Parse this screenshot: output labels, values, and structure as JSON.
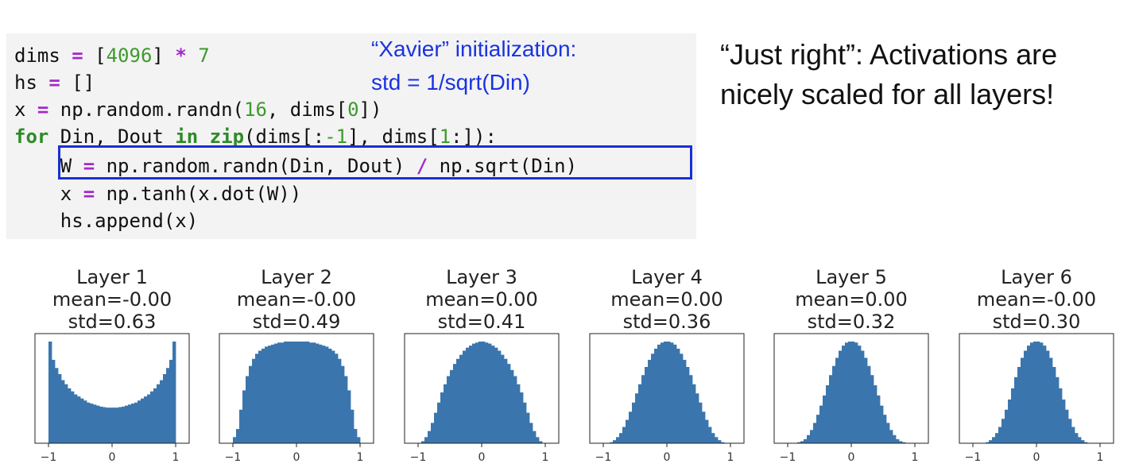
{
  "code": {
    "lines": [
      [
        {
          "t": "dims ",
          "c": ""
        },
        {
          "t": "=",
          "c": "op"
        },
        {
          "t": " [",
          "c": ""
        },
        {
          "t": "4096",
          "c": "num"
        },
        {
          "t": "] ",
          "c": ""
        },
        {
          "t": "*",
          "c": "op"
        },
        {
          "t": " ",
          "c": ""
        },
        {
          "t": "7",
          "c": "num"
        }
      ],
      [
        {
          "t": "hs ",
          "c": ""
        },
        {
          "t": "=",
          "c": "op"
        },
        {
          "t": " []",
          "c": ""
        }
      ],
      [
        {
          "t": "x ",
          "c": ""
        },
        {
          "t": "=",
          "c": "op"
        },
        {
          "t": " np.random.randn(",
          "c": ""
        },
        {
          "t": "16",
          "c": "num"
        },
        {
          "t": ", dims[",
          "c": ""
        },
        {
          "t": "0",
          "c": "num"
        },
        {
          "t": "])",
          "c": ""
        }
      ],
      [
        {
          "t": "for",
          "c": "kw"
        },
        {
          "t": " Din, Dout ",
          "c": ""
        },
        {
          "t": "in",
          "c": "kw"
        },
        {
          "t": " ",
          "c": ""
        },
        {
          "t": "zip",
          "c": "kw"
        },
        {
          "t": "(dims[:",
          "c": ""
        },
        {
          "t": "-1",
          "c": "num"
        },
        {
          "t": "], dims[",
          "c": ""
        },
        {
          "t": "1",
          "c": "num"
        },
        {
          "t": ":]):",
          "c": ""
        }
      ],
      [
        {
          "t": "    W ",
          "c": ""
        },
        {
          "t": "=",
          "c": "op"
        },
        {
          "t": " np.random.randn(Din, Dout) ",
          "c": ""
        },
        {
          "t": "/",
          "c": "op"
        },
        {
          "t": " np.sqrt(Din)",
          "c": ""
        }
      ],
      [
        {
          "t": "    x ",
          "c": ""
        },
        {
          "t": "=",
          "c": "op"
        },
        {
          "t": " np.tanh(x.dot(W))",
          "c": ""
        }
      ],
      [
        {
          "t": "    hs.append(x)",
          "c": ""
        }
      ]
    ]
  },
  "annotation": {
    "line1": "“Xavier” initialization:",
    "line2": "std = 1/sqrt(Din)"
  },
  "side_text": {
    "line1": "“Just right”: Activations are",
    "line2": "nicely scaled for all layers!"
  },
  "colors": {
    "bar": "#3a76ad",
    "highlight_border": "#1a2fd6",
    "annotation_text": "#1a33e0"
  },
  "chart_data": [
    {
      "type": "bar",
      "title": "Layer 1",
      "subtitle1": "mean=-0.00",
      "subtitle2": "std=0.63",
      "xlim": [
        -1,
        1
      ],
      "xticks": [
        "−1",
        "0",
        "1"
      ],
      "x": [
        -0.975,
        -0.925,
        -0.875,
        -0.825,
        -0.775,
        -0.725,
        -0.675,
        -0.625,
        -0.575,
        -0.525,
        -0.475,
        -0.425,
        -0.375,
        -0.325,
        -0.275,
        -0.225,
        -0.175,
        -0.125,
        -0.075,
        -0.025,
        0.025,
        0.075,
        0.125,
        0.175,
        0.225,
        0.275,
        0.325,
        0.375,
        0.425,
        0.475,
        0.525,
        0.575,
        0.625,
        0.675,
        0.725,
        0.775,
        0.825,
        0.875,
        0.925,
        0.975
      ],
      "values": [
        1.0,
        0.82,
        0.74,
        0.68,
        0.62,
        0.58,
        0.54,
        0.51,
        0.48,
        0.46,
        0.44,
        0.42,
        0.4,
        0.39,
        0.38,
        0.37,
        0.36,
        0.355,
        0.35,
        0.35,
        0.35,
        0.35,
        0.355,
        0.36,
        0.37,
        0.38,
        0.39,
        0.4,
        0.42,
        0.44,
        0.46,
        0.48,
        0.51,
        0.54,
        0.58,
        0.62,
        0.68,
        0.74,
        0.82,
        1.0
      ]
    },
    {
      "type": "bar",
      "title": "Layer 2",
      "subtitle1": "mean=-0.00",
      "subtitle2": "std=0.49",
      "xlim": [
        -1,
        1
      ],
      "xticks": [
        "−1",
        "0",
        "1"
      ],
      "x": [
        -0.975,
        -0.925,
        -0.875,
        -0.825,
        -0.775,
        -0.725,
        -0.675,
        -0.625,
        -0.575,
        -0.525,
        -0.475,
        -0.425,
        -0.375,
        -0.325,
        -0.275,
        -0.225,
        -0.175,
        -0.125,
        -0.075,
        -0.025,
        0.025,
        0.075,
        0.125,
        0.175,
        0.225,
        0.275,
        0.325,
        0.375,
        0.425,
        0.475,
        0.525,
        0.575,
        0.625,
        0.675,
        0.725,
        0.775,
        0.825,
        0.875,
        0.925,
        0.975
      ],
      "values": [
        0.06,
        0.14,
        0.33,
        0.52,
        0.66,
        0.76,
        0.83,
        0.88,
        0.91,
        0.93,
        0.95,
        0.96,
        0.97,
        0.98,
        0.99,
        0.99,
        1.0,
        1.0,
        1.0,
        1.0,
        1.0,
        1.0,
        1.0,
        1.0,
        0.99,
        0.99,
        0.98,
        0.97,
        0.96,
        0.95,
        0.93,
        0.91,
        0.88,
        0.83,
        0.76,
        0.66,
        0.52,
        0.33,
        0.14,
        0.06
      ]
    },
    {
      "type": "bar",
      "title": "Layer 3",
      "subtitle1": "mean=0.00",
      "subtitle2": "std=0.41",
      "xlim": [
        -1,
        1
      ],
      "xticks": [
        "−1",
        "0",
        "1"
      ],
      "x": [
        -0.975,
        -0.925,
        -0.875,
        -0.825,
        -0.775,
        -0.725,
        -0.675,
        -0.625,
        -0.575,
        -0.525,
        -0.475,
        -0.425,
        -0.375,
        -0.325,
        -0.275,
        -0.225,
        -0.175,
        -0.125,
        -0.075,
        -0.025,
        0.025,
        0.075,
        0.125,
        0.175,
        0.225,
        0.275,
        0.325,
        0.375,
        0.425,
        0.475,
        0.525,
        0.575,
        0.625,
        0.675,
        0.725,
        0.775,
        0.825,
        0.875,
        0.925,
        0.975
      ],
      "values": [
        0.0,
        0.02,
        0.06,
        0.12,
        0.2,
        0.3,
        0.4,
        0.5,
        0.58,
        0.66,
        0.72,
        0.78,
        0.83,
        0.87,
        0.91,
        0.94,
        0.96,
        0.98,
        0.99,
        1.0,
        1.0,
        0.99,
        0.98,
        0.96,
        0.94,
        0.91,
        0.87,
        0.83,
        0.78,
        0.72,
        0.66,
        0.58,
        0.5,
        0.4,
        0.3,
        0.2,
        0.12,
        0.06,
        0.02,
        0.0
      ]
    },
    {
      "type": "bar",
      "title": "Layer 4",
      "subtitle1": "mean=0.00",
      "subtitle2": "std=0.36",
      "xlim": [
        -1,
        1
      ],
      "xticks": [
        "−1",
        "0",
        "1"
      ],
      "x": [
        -0.975,
        -0.925,
        -0.875,
        -0.825,
        -0.775,
        -0.725,
        -0.675,
        -0.625,
        -0.575,
        -0.525,
        -0.475,
        -0.425,
        -0.375,
        -0.325,
        -0.275,
        -0.225,
        -0.175,
        -0.125,
        -0.075,
        -0.025,
        0.025,
        0.075,
        0.125,
        0.175,
        0.225,
        0.275,
        0.325,
        0.375,
        0.425,
        0.475,
        0.525,
        0.575,
        0.625,
        0.675,
        0.725,
        0.775,
        0.825,
        0.875,
        0.925,
        0.975
      ],
      "values": [
        0.0,
        0.0,
        0.01,
        0.03,
        0.06,
        0.1,
        0.16,
        0.23,
        0.31,
        0.4,
        0.49,
        0.58,
        0.67,
        0.75,
        0.82,
        0.88,
        0.93,
        0.97,
        0.99,
        1.0,
        1.0,
        0.99,
        0.97,
        0.93,
        0.88,
        0.82,
        0.75,
        0.67,
        0.58,
        0.49,
        0.4,
        0.31,
        0.23,
        0.16,
        0.1,
        0.06,
        0.03,
        0.01,
        0.0,
        0.0
      ]
    },
    {
      "type": "bar",
      "title": "Layer 5",
      "subtitle1": "mean=0.00",
      "subtitle2": "std=0.32",
      "xlim": [
        -1,
        1
      ],
      "xticks": [
        "−1",
        "0",
        "1"
      ],
      "x": [
        -0.975,
        -0.925,
        -0.875,
        -0.825,
        -0.775,
        -0.725,
        -0.675,
        -0.625,
        -0.575,
        -0.525,
        -0.475,
        -0.425,
        -0.375,
        -0.325,
        -0.275,
        -0.225,
        -0.175,
        -0.125,
        -0.075,
        -0.025,
        0.025,
        0.075,
        0.125,
        0.175,
        0.225,
        0.275,
        0.325,
        0.375,
        0.425,
        0.475,
        0.525,
        0.575,
        0.625,
        0.675,
        0.725,
        0.775,
        0.825,
        0.875,
        0.925,
        0.975
      ],
      "values": [
        0.0,
        0.0,
        0.0,
        0.01,
        0.02,
        0.04,
        0.08,
        0.13,
        0.2,
        0.28,
        0.37,
        0.47,
        0.57,
        0.67,
        0.76,
        0.84,
        0.91,
        0.96,
        0.99,
        1.0,
        1.0,
        0.99,
        0.96,
        0.91,
        0.84,
        0.76,
        0.67,
        0.57,
        0.47,
        0.37,
        0.28,
        0.2,
        0.13,
        0.08,
        0.04,
        0.02,
        0.01,
        0.0,
        0.0,
        0.0
      ]
    },
    {
      "type": "bar",
      "title": "Layer 6",
      "subtitle1": "mean=-0.00",
      "subtitle2": "std=0.30",
      "xlim": [
        -1,
        1
      ],
      "xticks": [
        "−1",
        "0",
        "1"
      ],
      "x": [
        -0.975,
        -0.925,
        -0.875,
        -0.825,
        -0.775,
        -0.725,
        -0.675,
        -0.625,
        -0.575,
        -0.525,
        -0.475,
        -0.425,
        -0.375,
        -0.325,
        -0.275,
        -0.225,
        -0.175,
        -0.125,
        -0.075,
        -0.025,
        0.025,
        0.075,
        0.125,
        0.175,
        0.225,
        0.275,
        0.325,
        0.375,
        0.425,
        0.475,
        0.525,
        0.575,
        0.625,
        0.675,
        0.725,
        0.775,
        0.825,
        0.875,
        0.925,
        0.975
      ],
      "values": [
        0.0,
        0.0,
        0.0,
        0.0,
        0.01,
        0.03,
        0.06,
        0.1,
        0.16,
        0.24,
        0.33,
        0.43,
        0.54,
        0.65,
        0.75,
        0.84,
        0.91,
        0.96,
        0.99,
        1.0,
        1.0,
        0.99,
        0.96,
        0.91,
        0.84,
        0.75,
        0.65,
        0.54,
        0.43,
        0.33,
        0.24,
        0.16,
        0.1,
        0.06,
        0.03,
        0.01,
        0.0,
        0.0,
        0.0,
        0.0
      ]
    }
  ]
}
